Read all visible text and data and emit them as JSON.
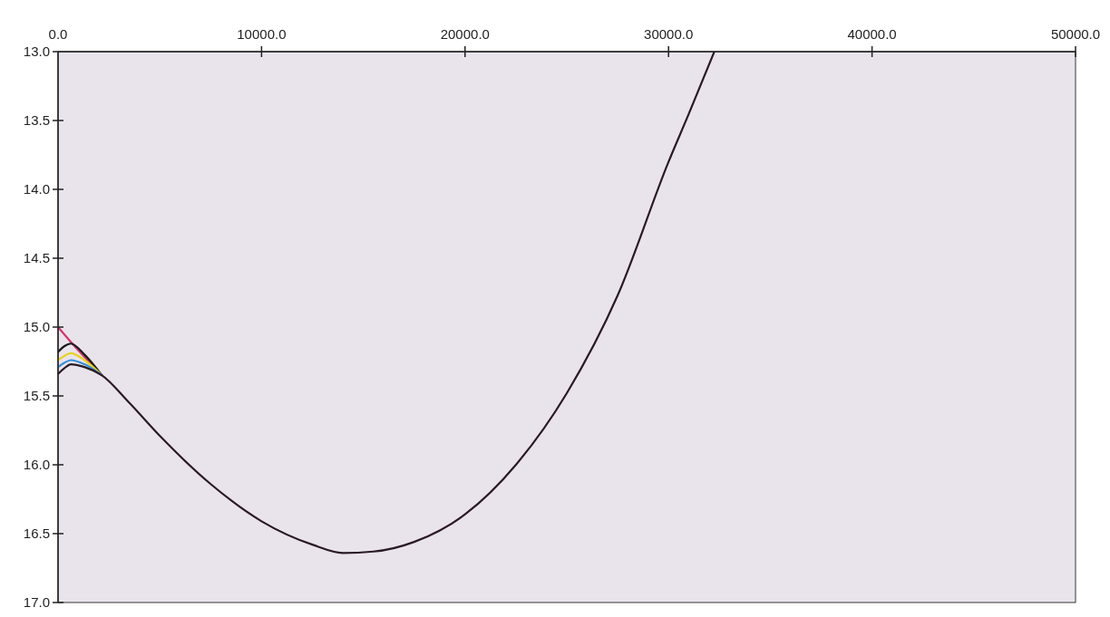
{
  "chart_data": {
    "type": "line",
    "xlim": [
      0,
      50000
    ],
    "ylim": [
      17,
      13
    ],
    "xticks": [
      {
        "value": 0,
        "label": "0.0"
      },
      {
        "value": 10000,
        "label": "10000.0"
      },
      {
        "value": 20000,
        "label": "20000.0"
      },
      {
        "value": 30000,
        "label": "30000.0"
      },
      {
        "value": 40000,
        "label": "40000.0"
      },
      {
        "value": 50000,
        "label": "50000.0"
      }
    ],
    "yticks": [
      {
        "value": 13,
        "label": "13.0"
      },
      {
        "value": 13.5,
        "label": "13.5"
      },
      {
        "value": 14,
        "label": "14.0"
      },
      {
        "value": 14.5,
        "label": "14.5"
      },
      {
        "value": 15,
        "label": "15.0"
      },
      {
        "value": 15.5,
        "label": "15.5"
      },
      {
        "value": 16,
        "label": "16.0"
      },
      {
        "value": 16.5,
        "label": "16.5"
      },
      {
        "value": 17,
        "label": "17.0"
      }
    ],
    "grid": false,
    "marker": "none",
    "line_style": "solid",
    "series": [
      {
        "color": "#d6336c",
        "x": [
          0,
          1000,
          2150
        ],
        "values": [
          15.0,
          15.17,
          15.35
        ]
      },
      {
        "color": "#1a1a1a",
        "x": [
          0,
          300,
          630,
          1300,
          2150
        ],
        "values": [
          15.18,
          15.14,
          15.12,
          15.2,
          15.35
        ]
      },
      {
        "color": "#e8d21e",
        "x": [
          0,
          300,
          630,
          1300,
          2150
        ],
        "values": [
          15.24,
          15.21,
          15.19,
          15.24,
          15.35
        ]
      },
      {
        "color": "#2f8fd8",
        "x": [
          0,
          300,
          630,
          1300,
          2150
        ],
        "values": [
          15.29,
          15.26,
          15.24,
          15.27,
          15.35
        ]
      },
      {
        "color": "#2a1a24",
        "x": [
          0,
          300,
          630,
          1300,
          2150,
          3500,
          5000,
          7500,
          10000,
          12500,
          14000,
          15500,
          17500,
          20000,
          22500,
          25000,
          27500,
          30000,
          31000,
          32250
        ],
        "values": [
          15.34,
          15.3,
          15.27,
          15.29,
          15.35,
          15.55,
          15.79,
          16.14,
          16.41,
          16.58,
          16.64,
          16.63,
          16.56,
          16.36,
          16.0,
          15.48,
          14.77,
          13.8,
          13.45,
          13.0
        ]
      }
    ]
  }
}
